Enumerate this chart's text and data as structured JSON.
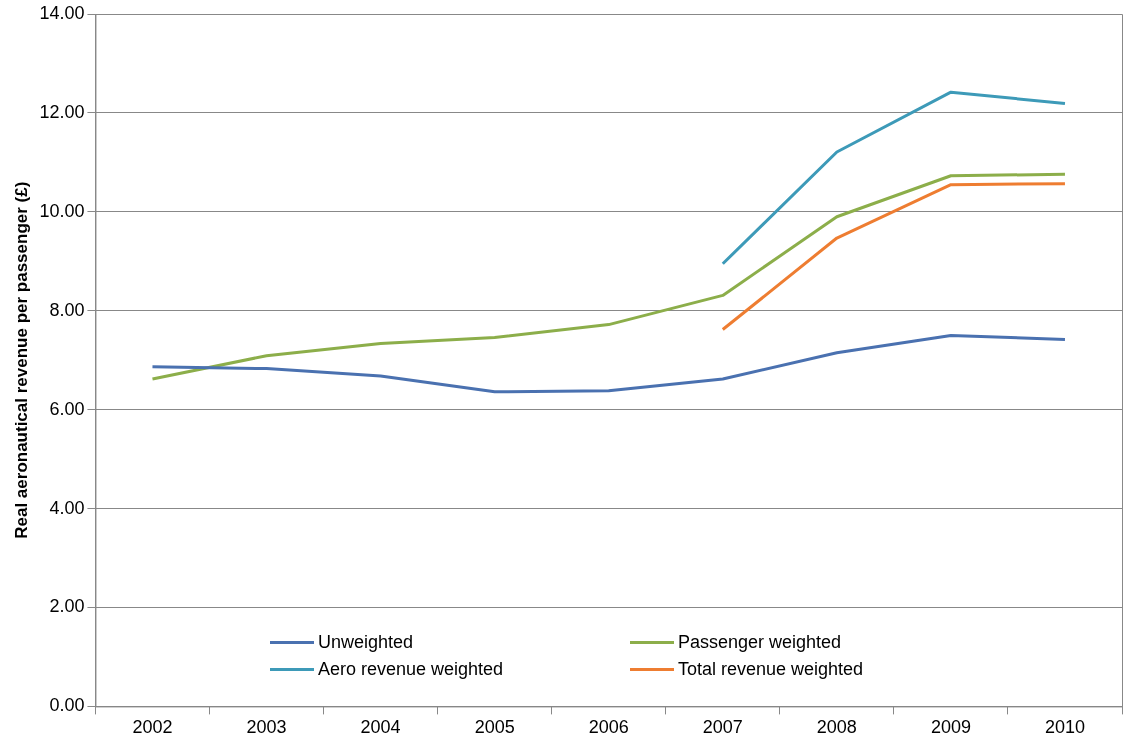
{
  "chart_data": {
    "type": "line",
    "ylabel": "Real aeronautical revenue per passenger (£)",
    "categories": [
      "2002",
      "2003",
      "2004",
      "2005",
      "2006",
      "2007",
      "2008",
      "2009",
      "2010"
    ],
    "series": [
      {
        "name": "Unweighted",
        "color": "#4a71b0",
        "values": [
          6.87,
          6.83,
          6.68,
          6.36,
          6.38,
          6.62,
          7.15,
          7.5,
          7.42
        ]
      },
      {
        "name": "Passenger weighted",
        "color": "#8cae4a",
        "values": [
          6.62,
          7.09,
          7.34,
          7.46,
          7.72,
          8.31,
          9.9,
          10.73,
          10.76
        ]
      },
      {
        "name": "Aero revenue weighted",
        "color": "#3d9ab8",
        "values": [
          null,
          null,
          null,
          null,
          null,
          8.95,
          11.21,
          12.42,
          12.19
        ]
      },
      {
        "name": "Total revenue weighted",
        "color": "#ee7d31",
        "values": [
          null,
          null,
          null,
          null,
          null,
          7.62,
          9.47,
          10.55,
          10.57
        ]
      }
    ],
    "ylim": [
      0,
      14
    ],
    "yticks": [
      {
        "value": 0,
        "label": "0.00"
      },
      {
        "value": 2,
        "label": "2.00"
      },
      {
        "value": 4,
        "label": "4.00"
      },
      {
        "value": 6,
        "label": "6.00"
      },
      {
        "value": 8,
        "label": "8.00"
      },
      {
        "value": 10,
        "label": "10.00"
      },
      {
        "value": 12,
        "label": "12.00"
      },
      {
        "value": 14,
        "label": "14.00"
      }
    ],
    "grid": "y",
    "legend": "bottom",
    "marker": "none",
    "line_style": "solid"
  }
}
